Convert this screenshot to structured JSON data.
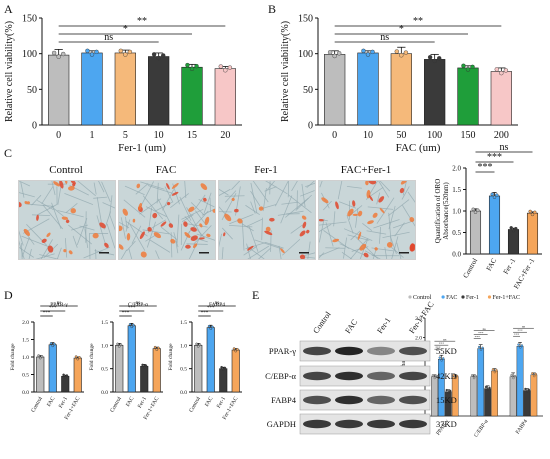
{
  "panels": {
    "A": {
      "letter": "A"
    },
    "B": {
      "letter": "B"
    },
    "C": {
      "letter": "C"
    },
    "D": {
      "letter": "D"
    },
    "E": {
      "letter": "E"
    }
  },
  "micro_labels": [
    "Control",
    "FAC",
    "Fer-1",
    "FAC+Fer-1"
  ],
  "blot": {
    "lanes": [
      "Control",
      "FAC",
      "Fer-1",
      "Fer-1+FAC"
    ],
    "rows": [
      {
        "name": "PPAR-γ",
        "kd": "55KD",
        "intensity": [
          0.85,
          1.0,
          0.55,
          0.8
        ]
      },
      {
        "name": "C/EBP-α",
        "kd": "42KD",
        "intensity": [
          0.85,
          0.95,
          0.7,
          0.85
        ]
      },
      {
        "name": "FABP4",
        "kd": "15KD",
        "intensity": [
          0.8,
          0.95,
          0.7,
          0.8
        ]
      },
      {
        "name": "GAPDH",
        "kd": "37KD",
        "intensity": [
          0.9,
          0.9,
          0.9,
          0.9
        ]
      }
    ]
  },
  "colors": {
    "control": "#bdbdbd",
    "fac": "#4da6f0",
    "fer1": "#3a3a3a",
    "fer1fac": "#f5a55a",
    "A_series": [
      "#bdbdbd",
      "#4da6f0",
      "#f5b97a",
      "#3a3a3a",
      "#1f9e3a",
      "#f7c7c7"
    ]
  },
  "chart_data": [
    {
      "id": "A",
      "type": "bar",
      "categories": [
        "0",
        "1",
        "5",
        "10",
        "15",
        "20"
      ],
      "values": [
        98,
        101,
        101,
        96,
        81,
        79
      ],
      "errors": [
        8,
        3,
        4,
        5,
        4,
        3
      ],
      "xlabel": "Fer-1 (um)",
      "ylabel": "Relative cell viability(%)",
      "ylim": [
        0,
        150
      ],
      "yticks": [
        0,
        50,
        100,
        150
      ],
      "brackets": [
        {
          "from": 0,
          "to": 3,
          "label": "ns"
        },
        {
          "from": 0,
          "to": 4,
          "label": "*"
        },
        {
          "from": 0,
          "to": 5,
          "label": "**"
        }
      ]
    },
    {
      "id": "B",
      "type": "bar",
      "categories": [
        "0",
        "10",
        "50",
        "100",
        "150",
        "200"
      ],
      "values": [
        99,
        101,
        100,
        92,
        80,
        75
      ],
      "errors": [
        5,
        3,
        9,
        7,
        3,
        5
      ],
      "xlabel": "FAC (um)",
      "ylabel": "Relative cell viability(%)",
      "ylim": [
        0,
        150
      ],
      "yticks": [
        0,
        50,
        100,
        150
      ],
      "brackets": [
        {
          "from": 0,
          "to": 3,
          "label": "ns"
        },
        {
          "from": 0,
          "to": 4,
          "label": "*"
        },
        {
          "from": 0,
          "to": 5,
          "label": "**"
        }
      ]
    },
    {
      "id": "C",
      "type": "bar",
      "categories": [
        "Control",
        "FAC",
        "Fer -1",
        "FAC+Fer -1"
      ],
      "values": [
        1.0,
        1.35,
        0.57,
        0.95
      ],
      "errors": [
        0.05,
        0.08,
        0.03,
        0.03
      ],
      "xlabel": "",
      "ylabel": "Quantification of ORO\nAbsorbance(520nm)",
      "ylim": [
        0,
        2.0
      ],
      "yticks": [
        0.0,
        0.5,
        1.0,
        1.5,
        2.0
      ],
      "brackets": [
        {
          "from": 0,
          "to": 1,
          "label": "***"
        },
        {
          "from": 0,
          "to": 2,
          "label": "***"
        },
        {
          "from": 0,
          "to": 3,
          "label": "ns"
        }
      ]
    },
    {
      "id": "D1",
      "type": "bar",
      "title": "PPAR-γ",
      "categories": [
        "Control",
        "FAC",
        "Fer-1",
        "Fer-1+FAC"
      ],
      "values": [
        1.0,
        1.35,
        0.45,
        0.97
      ],
      "errors": [
        0.04,
        0.06,
        0.03,
        0.03
      ],
      "ylabel": "Fold change",
      "ylim": [
        0,
        2.0
      ],
      "yticks": [
        0.0,
        0.5,
        1.0,
        1.5,
        2.0
      ],
      "brackets": [
        {
          "from": 0,
          "to": 1,
          "label": "***"
        },
        {
          "from": 0,
          "to": 2,
          "label": "***"
        },
        {
          "from": 0,
          "to": 3,
          "label": "ns"
        }
      ]
    },
    {
      "id": "D2",
      "type": "bar",
      "title": "C/EBP-α",
      "categories": [
        "Control",
        "FAC",
        "Fer-1",
        "Fer-1+FAC"
      ],
      "values": [
        1.0,
        1.42,
        0.55,
        0.93
      ],
      "errors": [
        0.04,
        0.05,
        0.04,
        0.03
      ],
      "ylabel": "Fold change",
      "ylim": [
        0,
        1.5
      ],
      "yticks": [
        0.0,
        0.5,
        1.0,
        1.5
      ],
      "brackets": [
        {
          "from": 0,
          "to": 1,
          "label": "***"
        },
        {
          "from": 0,
          "to": 2,
          "label": "***"
        },
        {
          "from": 0,
          "to": 3,
          "label": "ns"
        }
      ]
    },
    {
      "id": "D3",
      "type": "bar",
      "title": "FABP4",
      "categories": [
        "Control",
        "FAC",
        "Fer-1",
        "Fer-1+FAC"
      ],
      "values": [
        1.0,
        1.38,
        0.5,
        0.9
      ],
      "errors": [
        0.04,
        0.05,
        0.03,
        0.03
      ],
      "ylabel": "Fold change",
      "ylim": [
        0,
        1.5
      ],
      "yticks": [
        0.0,
        0.5,
        1.0,
        1.5
      ],
      "brackets": [
        {
          "from": 0,
          "to": 1,
          "label": "***"
        },
        {
          "from": 0,
          "to": 2,
          "label": "***"
        },
        {
          "from": 0,
          "to": 3,
          "label": "ns"
        }
      ]
    },
    {
      "id": "E",
      "type": "bar",
      "groups": [
        "PPAR-γ",
        "C/EBP-α",
        "FABP4"
      ],
      "series": [
        {
          "name": "Control",
          "values": [
            1.0,
            1.0,
            1.0
          ],
          "errors": [
            0.05,
            0.05,
            0.1
          ]
        },
        {
          "name": "FAC",
          "values": [
            1.45,
            1.72,
            1.78
          ],
          "errors": [
            0.1,
            0.1,
            0.1
          ]
        },
        {
          "name": "Fer-1",
          "values": [
            0.62,
            0.7,
            0.65
          ],
          "errors": [
            0.05,
            0.07,
            0.05
          ]
        },
        {
          "name": "Fer-1+FAC",
          "values": [
            1.0,
            1.15,
            1.05
          ],
          "errors": [
            0.05,
            0.06,
            0.05
          ]
        }
      ],
      "ylabel": "Fold change",
      "ylim": [
        0,
        2.5
      ],
      "yticks": [
        0.0,
        0.5,
        1.0,
        1.5,
        2.0,
        2.5
      ],
      "legend": "top",
      "brackets": [
        {
          "group": 0,
          "label": "***"
        },
        {
          "group": 0,
          "label": "***"
        },
        {
          "group": 0,
          "label": "ns"
        },
        {
          "group": 1,
          "label": "***"
        },
        {
          "group": 1,
          "label": "***"
        },
        {
          "group": 1,
          "label": "ns"
        },
        {
          "group": 2,
          "label": "***"
        },
        {
          "group": 2,
          "label": "***"
        },
        {
          "group": 2,
          "label": "ns"
        }
      ]
    }
  ]
}
